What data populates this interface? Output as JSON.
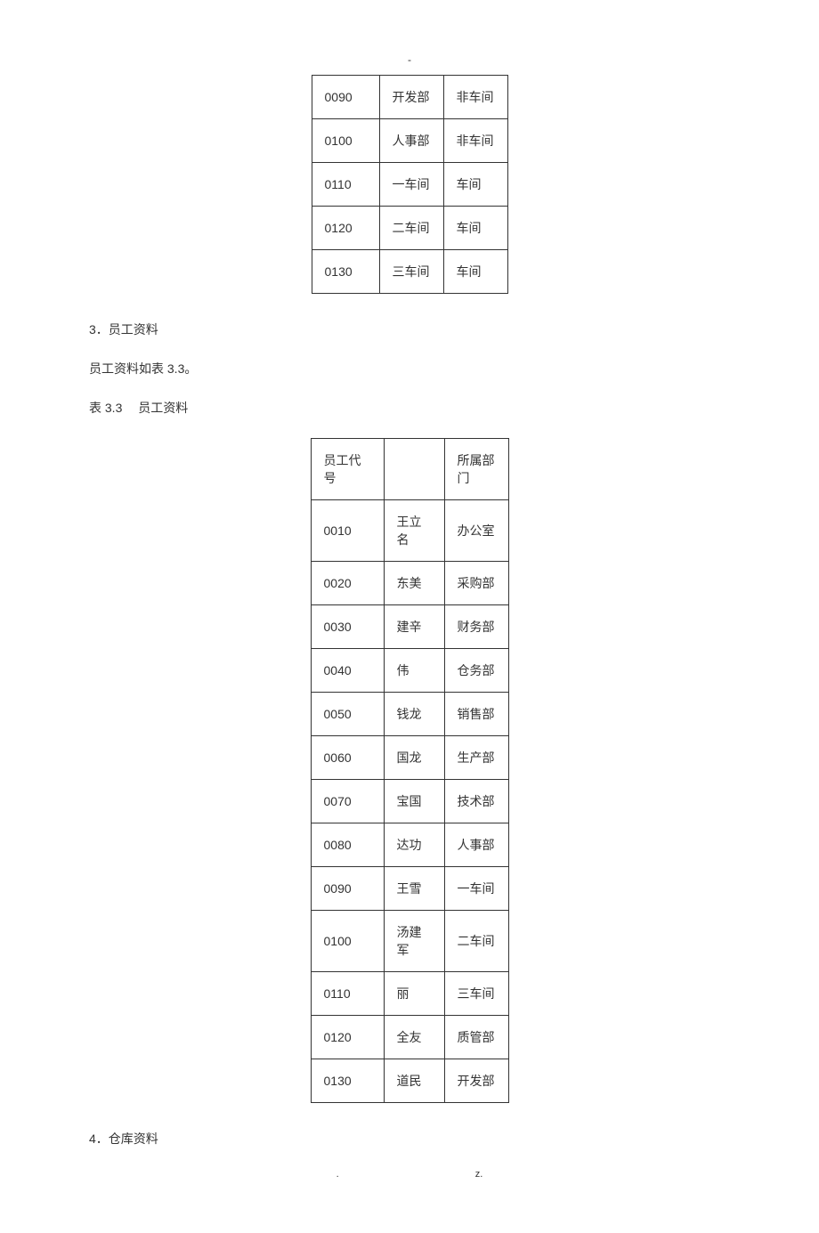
{
  "header": {
    "dash": "-"
  },
  "table1": {
    "rows": [
      [
        "0090",
        "开发部",
        "非车间"
      ],
      [
        "0100",
        "人事部",
        "非车间"
      ],
      [
        "0110",
        "一车间",
        "车间"
      ],
      [
        "0120",
        "二车间",
        "车间"
      ],
      [
        "0130",
        "三车间",
        "车间"
      ]
    ]
  },
  "sections": {
    "s3_heading": "3．员工资料",
    "s3_para": "员工资料如表 3.3。",
    "s3_table_caption": "表 3.3  员工资料",
    "s4_heading": "4．仓库资料"
  },
  "table2": {
    "headers": [
      "员工代号",
      "",
      "所属部门"
    ],
    "rows": [
      [
        "0010",
        "王立名",
        "办公室"
      ],
      [
        "0020",
        "东美",
        "采购部"
      ],
      [
        "0030",
        "建辛",
        "财务部"
      ],
      [
        "0040",
        "伟",
        "仓务部"
      ],
      [
        "0050",
        "钱龙",
        "销售部"
      ],
      [
        "0060",
        "国龙",
        "生产部"
      ],
      [
        "0070",
        "宝国",
        "技术部"
      ],
      [
        "0080",
        "达功",
        "人事部"
      ],
      [
        "0090",
        "王雪",
        "一车间"
      ],
      [
        "0100",
        "汤建军",
        "二车间"
      ],
      [
        "0110",
        "丽",
        "三车间"
      ],
      [
        "0120",
        "全友",
        "质管部"
      ],
      [
        "0130",
        "道民",
        "开发部"
      ]
    ]
  },
  "footer": {
    "left": ".",
    "right": "z."
  },
  "styling": {
    "font_family": "Microsoft YaHei",
    "text_color": "#333333",
    "border_color": "#333333",
    "background_color": "#ffffff",
    "body_font_size": 14,
    "cell_padding": 14
  }
}
